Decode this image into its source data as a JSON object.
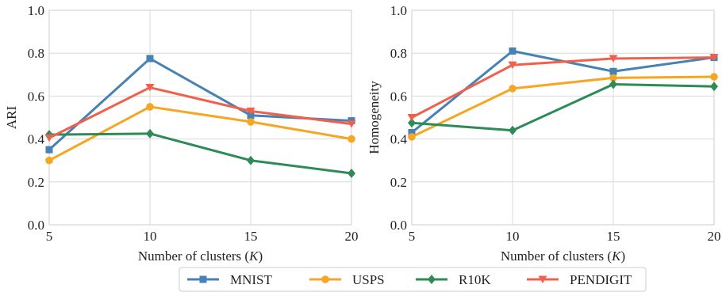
{
  "chart_data": [
    {
      "type": "line",
      "xlabel": "Number of clusters (K)",
      "ylabel": "ARI",
      "x": [
        5,
        10,
        15,
        20
      ],
      "xlim": [
        5,
        20
      ],
      "ylim": [
        0.0,
        1.0
      ],
      "xticks": [
        "5",
        "10",
        "15",
        "20"
      ],
      "yticks": [
        "0.0",
        "0.2",
        "0.4",
        "0.6",
        "0.8",
        "1.0"
      ],
      "grid": true,
      "series": [
        {
          "name": "MNIST",
          "values": [
            0.35,
            0.775,
            0.51,
            0.485
          ],
          "color": "#4682b4",
          "marker": "square"
        },
        {
          "name": "USPS",
          "values": [
            0.3,
            0.55,
            0.48,
            0.4
          ],
          "color": "#f5a623",
          "marker": "circle"
        },
        {
          "name": "R10K",
          "values": [
            0.42,
            0.425,
            0.3,
            0.24
          ],
          "color": "#2e8b57",
          "marker": "diamond"
        },
        {
          "name": "PENDIGIT",
          "values": [
            0.405,
            0.64,
            0.53,
            0.47
          ],
          "color": "#f0604d",
          "marker": "triangle-down"
        }
      ]
    },
    {
      "type": "line",
      "xlabel": "Number of clusters (K)",
      "ylabel": "Homogeneity",
      "x": [
        5,
        10,
        15,
        20
      ],
      "xlim": [
        5,
        20
      ],
      "ylim": [
        0.0,
        1.0
      ],
      "xticks": [
        "5",
        "10",
        "15",
        "20"
      ],
      "yticks": [
        "0.0",
        "0.2",
        "0.4",
        "0.6",
        "0.8",
        "1.0"
      ],
      "grid": true,
      "series": [
        {
          "name": "MNIST",
          "values": [
            0.43,
            0.81,
            0.715,
            0.78
          ],
          "color": "#4682b4",
          "marker": "square"
        },
        {
          "name": "USPS",
          "values": [
            0.41,
            0.635,
            0.685,
            0.69
          ],
          "color": "#f5a623",
          "marker": "circle"
        },
        {
          "name": "R10K",
          "values": [
            0.475,
            0.44,
            0.655,
            0.645
          ],
          "color": "#2e8b57",
          "marker": "diamond"
        },
        {
          "name": "PENDIGIT",
          "values": [
            0.5,
            0.745,
            0.775,
            0.78
          ],
          "color": "#f0604d",
          "marker": "triangle-down"
        }
      ]
    }
  ],
  "legend": {
    "placement": "bottom-center",
    "entries": [
      "MNIST",
      "USPS",
      "R10K",
      "PENDIGIT"
    ]
  }
}
